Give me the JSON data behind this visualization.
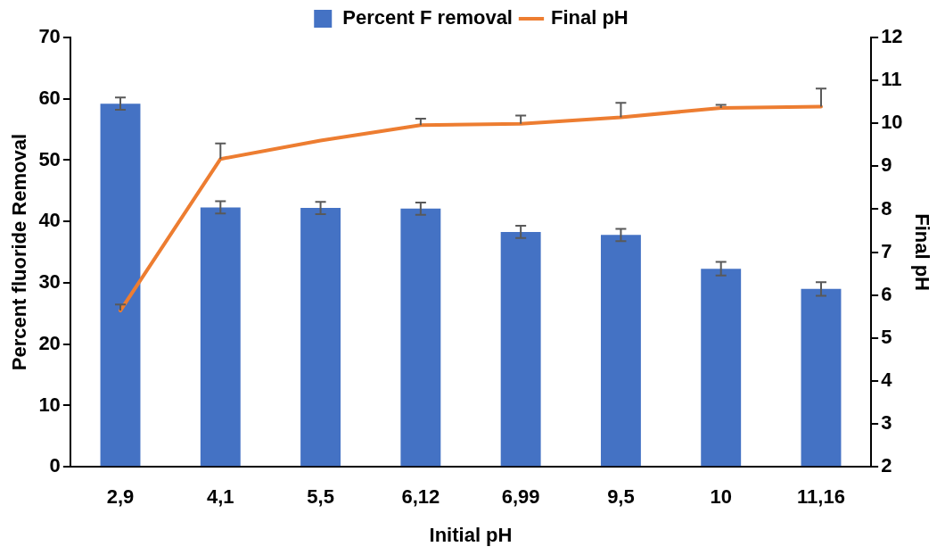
{
  "chart_data": {
    "type": "bar",
    "xlabel": "Initial pH",
    "ylabel": "Percent fluoride Removal",
    "y2label": "Final pH",
    "categories": [
      "2,9",
      "4,1",
      "5,5",
      "6,12",
      "6,99",
      "9,5",
      "10",
      "11,16"
    ],
    "series": [
      {
        "name": "Percent F removal",
        "color": "#4472c4",
        "values": [
          59.2,
          42.3,
          42.2,
          42.1,
          38.3,
          37.8,
          32.3,
          29.0
        ],
        "errors": [
          1.0,
          1.0,
          1.0,
          1.0,
          1.0,
          1.0,
          1.1,
          1.1
        ]
      },
      {
        "name": "Final pH",
        "type": "line",
        "axis": "y2",
        "color": "#ed7d31",
        "values": [
          5.64,
          9.17,
          9.6,
          9.96,
          9.99,
          10.14,
          10.36,
          10.39
        ],
        "errors": [
          [
            5.64,
            5.78
          ],
          [
            9.17,
            9.53
          ],
          null,
          [
            9.96,
            10.11
          ],
          [
            9.99,
            10.18
          ],
          [
            10.14,
            10.48
          ],
          [
            10.36,
            10.43
          ],
          [
            10.39,
            10.81
          ]
        ]
      }
    ],
    "ylim": [
      0,
      70
    ],
    "yticks": [
      0,
      10,
      20,
      30,
      40,
      50,
      60,
      70
    ],
    "y2lim": [
      2,
      12
    ],
    "y2ticks": [
      2,
      3,
      4,
      5,
      6,
      7,
      8,
      9,
      10,
      11,
      12
    ],
    "grid": false,
    "legend": "top",
    "marker": "none",
    "line_style": "solid"
  }
}
